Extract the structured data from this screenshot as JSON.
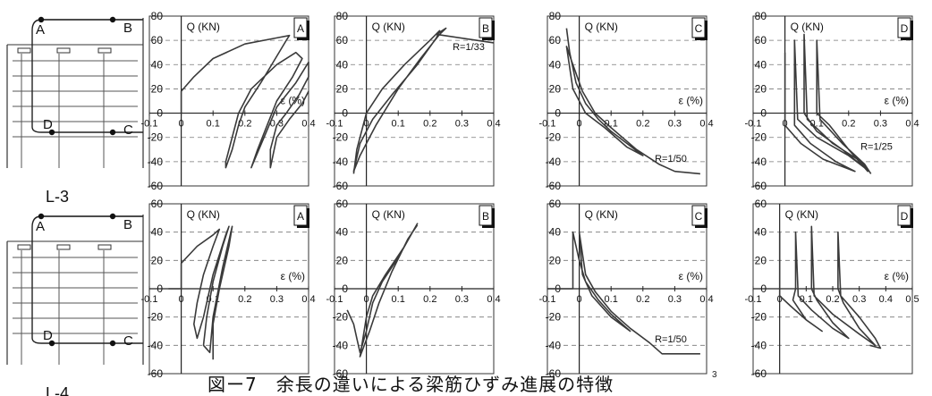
{
  "figure_caption": "図ー7　余長の違いによる梁筋ひずみ進展の特徴",
  "page_number": "3",
  "specimens": [
    {
      "label": "L-3",
      "points": [
        "A",
        "B",
        "C",
        "D"
      ]
    },
    {
      "label": "L-4",
      "points": [
        "A",
        "B",
        "C",
        "D"
      ]
    }
  ],
  "chart_data": [
    {
      "type": "line",
      "panel": "A",
      "row": "L-3",
      "ylabel": "Q (KN)",
      "xlabel": "ε (%)",
      "xlim": [
        -0.1,
        0.4
      ],
      "ylim": [
        -60,
        80
      ],
      "xticks": [
        "-0.1",
        "0",
        "0.1",
        "0.2",
        "0.3",
        "0.4"
      ],
      "yticks": [
        "80",
        "60",
        "40",
        "20",
        "0",
        "-20",
        "-40",
        "-60"
      ],
      "grid": "dashed horizontal",
      "annotation": "",
      "series": [
        {
          "values": [
            [
              0,
              0
            ],
            [
              0,
              18
            ],
            [
              0.04,
              30
            ],
            [
              0.1,
              45
            ],
            [
              0.2,
              57
            ],
            [
              0.3,
              62
            ],
            [
              0.34,
              64
            ],
            [
              0.33,
              60
            ],
            [
              0.25,
              25
            ],
            [
              0.2,
              5
            ],
            [
              0.18,
              -10
            ],
            [
              0.16,
              -30
            ],
            [
              0.14,
              -45
            ],
            [
              0.14,
              -40
            ],
            [
              0.18,
              0
            ],
            [
              0.22,
              20
            ],
            [
              0.3,
              40
            ],
            [
              0.36,
              50
            ],
            [
              0.38,
              45
            ],
            [
              0.35,
              30
            ],
            [
              0.3,
              10
            ],
            [
              0.27,
              -10
            ],
            [
              0.24,
              -30
            ],
            [
              0.22,
              -45
            ],
            [
              0.26,
              -20
            ],
            [
              0.3,
              5
            ],
            [
              0.36,
              25
            ],
            [
              0.4,
              42
            ],
            [
              0.4,
              30
            ],
            [
              0.37,
              15
            ],
            [
              0.33,
              0
            ],
            [
              0.3,
              -10
            ],
            [
              0.28,
              -30
            ],
            [
              0.28,
              -45
            ],
            [
              0.3,
              -20
            ],
            [
              0.34,
              -5
            ],
            [
              0.38,
              8
            ],
            [
              0.4,
              18
            ]
          ]
        }
      ]
    },
    {
      "type": "line",
      "panel": "B",
      "row": "L-3",
      "ylabel": "Q (KN)",
      "xlabel": "",
      "xlim": [
        -0.1,
        0.4
      ],
      "ylim": [
        -60,
        80
      ],
      "xticks": [
        "-0.1",
        "0",
        "0.1",
        "0.2",
        "0.3",
        "0.4"
      ],
      "yticks": [
        "80",
        "60",
        "40",
        "20",
        "0",
        "-20",
        "-40",
        "-60"
      ],
      "grid": "dashed horizontal",
      "annotation": "R=1/33",
      "series": [
        {
          "values": [
            [
              -0.04,
              -50
            ],
            [
              -0.03,
              -30
            ],
            [
              0,
              0
            ],
            [
              0.05,
              20
            ],
            [
              0.12,
              40
            ],
            [
              0.2,
              60
            ],
            [
              0.23,
              68
            ],
            [
              0.22,
              62
            ],
            [
              0.16,
              40
            ],
            [
              0.08,
              15
            ],
            [
              0.02,
              -5
            ],
            [
              -0.02,
              -25
            ],
            [
              -0.04,
              -48
            ],
            [
              -0.02,
              -35
            ],
            [
              0.03,
              -10
            ],
            [
              0.1,
              20
            ],
            [
              0.17,
              45
            ],
            [
              0.23,
              65
            ],
            [
              0.25,
              70
            ],
            [
              0.22,
              65
            ],
            [
              0.4,
              58
            ]
          ]
        }
      ]
    },
    {
      "type": "line",
      "panel": "C",
      "row": "L-3",
      "ylabel": "Q (KN)",
      "xlabel": "ε (%)",
      "xlim": [
        -0.1,
        0.4
      ],
      "ylim": [
        -60,
        80
      ],
      "xticks": [
        "-0.1",
        "0",
        "0.1",
        "0.2",
        "0.3",
        "0.4"
      ],
      "yticks": [
        "80",
        "60",
        "40",
        "20",
        "0",
        "-20",
        "-40",
        "-60"
      ],
      "grid": "dashed horizontal",
      "annotation": "R=1/50",
      "series": [
        {
          "values": [
            [
              -0.04,
              70
            ],
            [
              -0.03,
              50
            ],
            [
              -0.01,
              25
            ],
            [
              0.02,
              8
            ],
            [
              0.06,
              -5
            ],
            [
              0.1,
              -15
            ],
            [
              0.15,
              -25
            ],
            [
              0.2,
              -35
            ],
            [
              0.15,
              -28
            ],
            [
              0.08,
              -12
            ],
            [
              0.02,
              0
            ],
            [
              -0.02,
              20
            ],
            [
              -0.04,
              55
            ],
            [
              -0.02,
              40
            ],
            [
              0.01,
              18
            ],
            [
              0.05,
              0
            ],
            [
              0.1,
              -12
            ],
            [
              0.18,
              -30
            ],
            [
              0.25,
              -42
            ],
            [
              0.3,
              -48
            ],
            [
              0.38,
              -50
            ]
          ]
        }
      ]
    },
    {
      "type": "line",
      "panel": "D",
      "row": "L-3",
      "ylabel": "Q (KN)",
      "xlabel": "ε (%)",
      "xlim": [
        -0.1,
        0.4
      ],
      "ylim": [
        -60,
        80
      ],
      "xticks": [
        "-0.1",
        "0",
        "0.1",
        "0.2",
        "0.3",
        "0.4"
      ],
      "yticks": [
        "80",
        "60",
        "40",
        "20",
        "0",
        "-20",
        "-40",
        "-60"
      ],
      "grid": "dashed horizontal",
      "annotation": "R=1/25",
      "series": [
        {
          "values": [
            [
              0,
              50
            ],
            [
              0,
              -10
            ],
            [
              0.05,
              -25
            ],
            [
              0.12,
              -38
            ],
            [
              0.22,
              -48
            ],
            [
              0.16,
              -40
            ],
            [
              0.08,
              -25
            ],
            [
              0.03,
              -10
            ],
            [
              0.03,
              60
            ],
            [
              0.04,
              -5
            ],
            [
              0.1,
              -20
            ],
            [
              0.2,
              -35
            ],
            [
              0.25,
              -45
            ],
            [
              0.18,
              -30
            ],
            [
              0.1,
              -15
            ],
            [
              0.06,
              0
            ],
            [
              0.06,
              65
            ],
            [
              0.07,
              -5
            ],
            [
              0.15,
              -25
            ],
            [
              0.24,
              -40
            ],
            [
              0.26,
              -48
            ],
            [
              0.2,
              -30
            ],
            [
              0.14,
              -10
            ],
            [
              0.1,
              0
            ],
            [
              0.1,
              60
            ],
            [
              0.11,
              -5
            ],
            [
              0.18,
              -25
            ],
            [
              0.25,
              -42
            ],
            [
              0.27,
              -50
            ]
          ]
        }
      ]
    },
    {
      "type": "line",
      "panel": "A",
      "row": "L-4",
      "ylabel": "Q (KN)",
      "xlabel": "ε (%)",
      "xlim": [
        -0.1,
        0.4
      ],
      "ylim": [
        -60,
        60
      ],
      "xticks": [
        "-0.1",
        "0",
        "0.1",
        "0.2",
        "0.3",
        "0.4"
      ],
      "yticks": [
        "60",
        "40",
        "20",
        "0",
        "-20",
        "-40",
        "-60"
      ],
      "grid": "dashed horizontal",
      "annotation": "",
      "series": [
        {
          "values": [
            [
              -0.04,
              0
            ],
            [
              0,
              0
            ],
            [
              0,
              18
            ],
            [
              0.05,
              30
            ],
            [
              0.1,
              38
            ],
            [
              0.12,
              42
            ],
            [
              0.1,
              30
            ],
            [
              0.07,
              10
            ],
            [
              0.05,
              -10
            ],
            [
              0.04,
              -25
            ],
            [
              0.05,
              -35
            ],
            [
              0.07,
              -20
            ],
            [
              0.1,
              10
            ],
            [
              0.14,
              38
            ],
            [
              0.15,
              44
            ],
            [
              0.13,
              30
            ],
            [
              0.1,
              5
            ],
            [
              0.08,
              -20
            ],
            [
              0.07,
              -40
            ],
            [
              0.09,
              -45
            ],
            [
              0.1,
              -20
            ],
            [
              0.13,
              15
            ],
            [
              0.16,
              44
            ],
            [
              0.15,
              30
            ],
            [
              0.12,
              0
            ],
            [
              0.1,
              -25
            ],
            [
              0.1,
              -50
            ]
          ]
        }
      ]
    },
    {
      "type": "line",
      "panel": "B",
      "row": "L-4",
      "ylabel": "Q (KN)",
      "xlabel": "",
      "xlim": [
        -0.1,
        0.4
      ],
      "ylim": [
        -60,
        60
      ],
      "xticks": [
        "-0.1",
        "0",
        "0.1",
        "0.2",
        "0.3",
        "0.4"
      ],
      "yticks": [
        "60",
        "40",
        "20",
        "0",
        "-20",
        "-40",
        "-60"
      ],
      "grid": "dashed horizontal",
      "annotation": "",
      "series": [
        {
          "values": [
            [
              -0.06,
              -15
            ],
            [
              -0.04,
              -25
            ],
            [
              -0.03,
              -35
            ],
            [
              -0.02,
              -45
            ],
            [
              0,
              -30
            ],
            [
              0.02,
              -10
            ],
            [
              0.05,
              5
            ],
            [
              0.1,
              22
            ],
            [
              0.14,
              38
            ],
            [
              0.16,
              46
            ],
            [
              0.12,
              30
            ],
            [
              0.06,
              10
            ],
            [
              0.02,
              -5
            ],
            [
              0,
              -20
            ],
            [
              -0.02,
              -48
            ],
            [
              0.01,
              -30
            ],
            [
              0.04,
              -10
            ],
            [
              0.08,
              12
            ],
            [
              0.13,
              35
            ],
            [
              0.16,
              45
            ]
          ]
        }
      ]
    },
    {
      "type": "line",
      "panel": "C",
      "row": "L-4",
      "ylabel": "Q (KN)",
      "xlabel": "ε (%)",
      "xlim": [
        -0.1,
        0.4
      ],
      "ylim": [
        -60,
        60
      ],
      "xticks": [
        "-0.1",
        "0",
        "0.1",
        "0.2",
        "0.3",
        "0.4"
      ],
      "yticks": [
        "60",
        "40",
        "20",
        "0",
        "-20",
        "-40",
        "-60"
      ],
      "grid": "dashed horizontal",
      "annotation": "R=1/50",
      "series": [
        {
          "values": [
            [
              -0.1,
              0
            ],
            [
              -0.02,
              0
            ],
            [
              -0.02,
              40
            ],
            [
              0,
              20
            ],
            [
              0.02,
              5
            ],
            [
              0.06,
              -8
            ],
            [
              0.1,
              -18
            ],
            [
              0.16,
              -30
            ],
            [
              0.1,
              -20
            ],
            [
              0.04,
              -5
            ],
            [
              0.01,
              10
            ],
            [
              0,
              40
            ],
            [
              0.02,
              10
            ],
            [
              0.05,
              -2
            ],
            [
              0.1,
              -16
            ],
            [
              0.16,
              -28
            ],
            [
              0.22,
              -38
            ],
            [
              0.26,
              -46
            ],
            [
              0.38,
              -46
            ]
          ]
        }
      ]
    },
    {
      "type": "line",
      "panel": "D",
      "row": "L-4",
      "ylabel": "Q (KN)",
      "xlabel": "ε (%)",
      "xlim": [
        -0.1,
        0.5
      ],
      "ylim": [
        -60,
        60
      ],
      "xticks": [
        "-0.1",
        "0",
        "0.1",
        "0.2",
        "0.3",
        "0.4",
        "0.5"
      ],
      "yticks": [
        "60",
        "40",
        "20",
        "0",
        "-20",
        "-40",
        "-60"
      ],
      "grid": "dashed horizontal",
      "annotation": "",
      "series": [
        {
          "values": [
            [
              0,
              40
            ],
            [
              0,
              -5
            ],
            [
              0.04,
              -12
            ],
            [
              0.1,
              -22
            ],
            [
              0.16,
              -30
            ],
            [
              0.1,
              -22
            ],
            [
              0.05,
              -8
            ],
            [
              0.06,
              0
            ],
            [
              0.06,
              40
            ],
            [
              0.07,
              -5
            ],
            [
              0.12,
              -15
            ],
            [
              0.2,
              -28
            ],
            [
              0.26,
              -35
            ],
            [
              0.2,
              -24
            ],
            [
              0.14,
              -8
            ],
            [
              0.12,
              0
            ],
            [
              0.12,
              44
            ],
            [
              0.13,
              -5
            ],
            [
              0.2,
              -18
            ],
            [
              0.3,
              -32
            ],
            [
              0.36,
              -40
            ],
            [
              0.3,
              -28
            ],
            [
              0.24,
              -10
            ],
            [
              0.22,
              0
            ],
            [
              0.22,
              40
            ],
            [
              0.23,
              -5
            ],
            [
              0.3,
              -20
            ],
            [
              0.36,
              -35
            ],
            [
              0.38,
              -42
            ],
            [
              0.34,
              -40
            ]
          ]
        }
      ]
    }
  ]
}
